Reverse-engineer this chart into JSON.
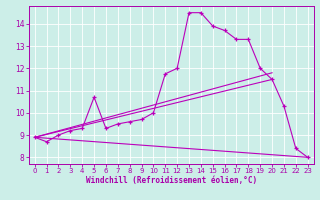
{
  "xlabel": "Windchill (Refroidissement éolien,°C)",
  "background_color": "#cceee8",
  "line_color": "#bb00bb",
  "xlim": [
    -0.5,
    23.5
  ],
  "ylim": [
    7.7,
    14.8
  ],
  "yticks": [
    8,
    9,
    10,
    11,
    12,
    13,
    14
  ],
  "xticks": [
    0,
    1,
    2,
    3,
    4,
    5,
    6,
    7,
    8,
    9,
    10,
    11,
    12,
    13,
    14,
    15,
    16,
    17,
    18,
    19,
    20,
    21,
    22,
    23
  ],
  "series1_x": [
    0,
    1,
    2,
    3,
    4,
    5,
    6,
    7,
    8,
    9,
    10,
    11,
    12,
    13,
    14,
    15,
    16,
    17,
    18,
    19,
    20,
    21,
    22,
    23
  ],
  "series1_y": [
    8.9,
    8.7,
    9.0,
    9.2,
    9.3,
    10.7,
    9.3,
    9.5,
    9.6,
    9.7,
    10.0,
    11.75,
    12.0,
    14.5,
    14.5,
    13.9,
    13.7,
    13.3,
    13.3,
    12.0,
    11.5,
    10.3,
    8.4,
    8.0
  ],
  "line1_x": [
    0,
    23
  ],
  "line1_y": [
    8.9,
    8.0
  ],
  "line2_x": [
    0,
    20
  ],
  "line2_y": [
    8.9,
    11.5
  ],
  "line3_x": [
    0,
    20
  ],
  "line3_y": [
    8.9,
    11.8
  ],
  "grid_color": "#ffffff",
  "font_color": "#aa00aa",
  "tick_fontsize": 5,
  "xlabel_fontsize": 5.5
}
